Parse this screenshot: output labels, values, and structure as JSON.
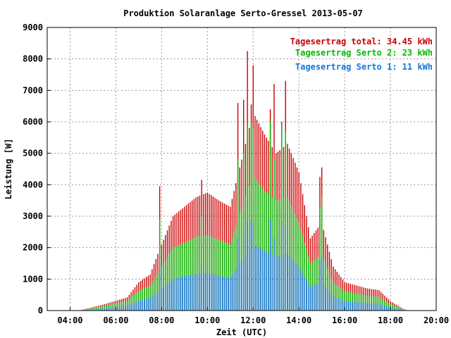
{
  "chart_data": {
    "type": "bar",
    "title": "Produktion Solaranlage Serto-Gressel 2013-05-07",
    "xlabel": "Zeit (UTC)",
    "ylabel": "Leistung [W]",
    "xlim": [
      "03:00",
      "20:00"
    ],
    "ylim": [
      0,
      9000
    ],
    "grid": true,
    "legend_position": "top-right",
    "x_ticks": [
      "04:00",
      "06:00",
      "08:00",
      "10:00",
      "12:00",
      "14:00",
      "16:00",
      "18:00",
      "20:00"
    ],
    "y_ticks": [
      "0",
      "1000",
      "2000",
      "3000",
      "4000",
      "5000",
      "6000",
      "7000",
      "8000",
      "9000"
    ],
    "legend": [
      {
        "key": "total",
        "label": "Tagesertrag total: 34.45 kWh",
        "color": "#cc0000"
      },
      {
        "key": "serto2",
        "label": "Tagesertrag Serto 2: 23 kWh",
        "color": "#00bb00"
      },
      {
        "key": "serto1",
        "label": "Tagesertrag Serto 1: 11 kWh",
        "color": "#1177dd"
      }
    ],
    "x_keypoints": [
      "04:30",
      "05:30",
      "06:30",
      "07:00",
      "07:30",
      "07:50",
      "08:30",
      "09:00",
      "09:30",
      "10:00",
      "10:30",
      "11:00",
      "11:30",
      "12:00",
      "12:30",
      "13:00",
      "13:30",
      "14:00",
      "14:30",
      "15:00",
      "15:30",
      "16:00",
      "16:30",
      "17:00",
      "17:30",
      "18:00",
      "18:30",
      "18:45"
    ],
    "series": [
      {
        "name": "total",
        "values": [
          20,
          200,
          420,
          900,
          1150,
          1800,
          3000,
          3300,
          3600,
          3750,
          3500,
          3300,
          4800,
          6300,
          5600,
          5000,
          5300,
          4400,
          2300,
          2800,
          1400,
          900,
          800,
          700,
          650,
          300,
          80,
          0
        ]
      },
      {
        "name": "serto2",
        "values": [
          15,
          150,
          300,
          620,
          800,
          1200,
          2000,
          2150,
          2350,
          2400,
          2250,
          2100,
          3300,
          4300,
          3800,
          3500,
          3600,
          2800,
          1500,
          1800,
          900,
          620,
          540,
          470,
          440,
          200,
          55,
          0
        ]
      },
      {
        "name": "serto1",
        "values": [
          10,
          70,
          150,
          300,
          400,
          600,
          1000,
          1100,
          1150,
          1200,
          1100,
          1050,
          1600,
          2100,
          1900,
          1700,
          1800,
          1400,
          750,
          900,
          450,
          300,
          260,
          230,
          210,
          100,
          25,
          0
        ]
      }
    ],
    "spikes": [
      {
        "x": "07:55",
        "total": 3950,
        "serto2": 2900
      },
      {
        "x": "09:45",
        "total": 4150,
        "serto2": 3000
      },
      {
        "x": "11:20",
        "total": 6600,
        "serto2": 4800
      },
      {
        "x": "11:35",
        "total": 6700,
        "serto2": 5000
      },
      {
        "x": "11:45",
        "total": 8250,
        "serto2": 5900
      },
      {
        "x": "11:55",
        "total": 6550,
        "serto2": 6000
      },
      {
        "x": "12:00",
        "total": 7800,
        "serto2": 5800
      },
      {
        "x": "12:45",
        "total": 6400,
        "serto2": 6000
      },
      {
        "x": "12:55",
        "total": 7200,
        "serto2": 4800
      },
      {
        "x": "13:15",
        "total": 6000,
        "serto2": 5900
      },
      {
        "x": "13:25",
        "total": 7300,
        "serto2": 5700
      },
      {
        "x": "14:55",
        "total": 4250,
        "serto2": 3300
      },
      {
        "x": "15:00",
        "total": 4550,
        "serto2": 3600
      }
    ]
  }
}
